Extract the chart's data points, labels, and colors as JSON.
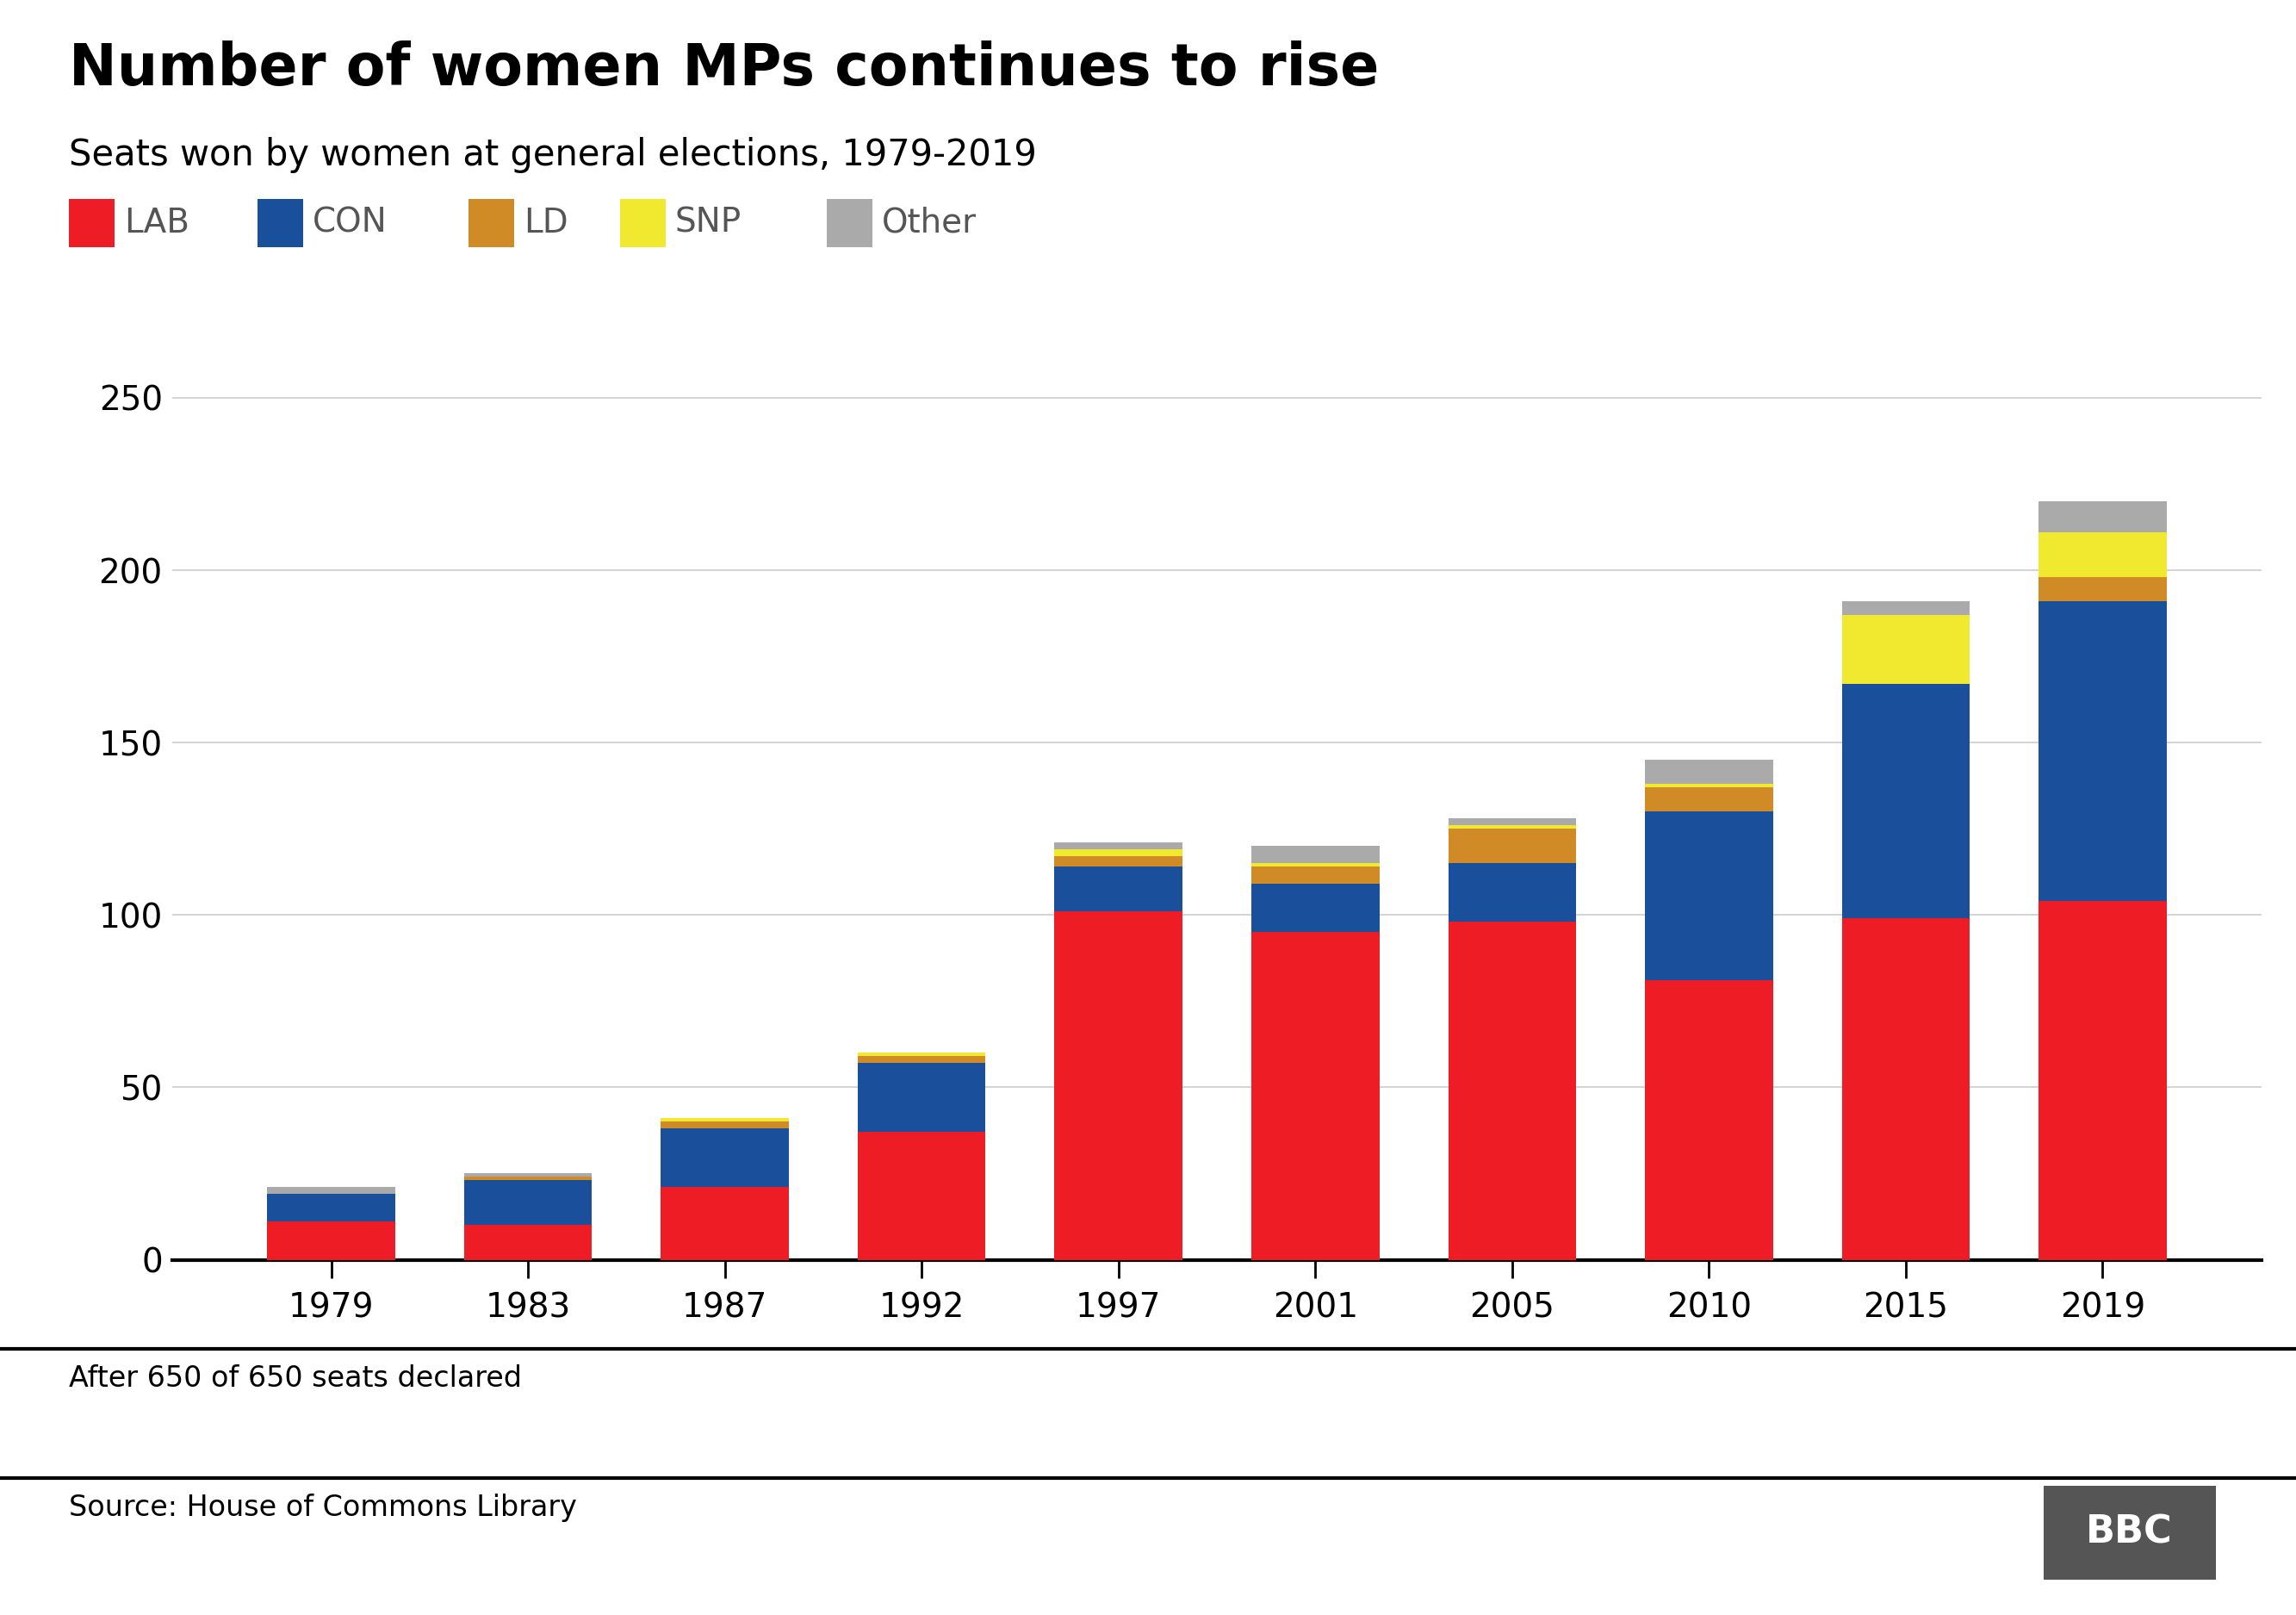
{
  "title": "Number of women MPs continues to rise",
  "subtitle": "Seats won by women at general elections, 1979-2019",
  "footnote": "After 650 of 650 seats declared",
  "source": "Source: House of Commons Library",
  "years": [
    "1979",
    "1983",
    "1987",
    "1992",
    "1997",
    "2001",
    "2005",
    "2010",
    "2015",
    "2019"
  ],
  "parties": [
    "LAB",
    "CON",
    "LD",
    "SNP",
    "Other"
  ],
  "colors": {
    "LAB": "#ee1c25",
    "CON": "#1a4f9c",
    "LD": "#d08b27",
    "SNP": "#f0e92f",
    "Other": "#aaaaaa"
  },
  "data": {
    "LAB": [
      11,
      10,
      21,
      37,
      101,
      95,
      98,
      81,
      99,
      104
    ],
    "CON": [
      8,
      13,
      17,
      20,
      13,
      14,
      17,
      49,
      68,
      87
    ],
    "LD": [
      0,
      1,
      2,
      2,
      3,
      5,
      10,
      7,
      0,
      7
    ],
    "SNP": [
      0,
      0,
      1,
      1,
      2,
      1,
      1,
      1,
      20,
      13
    ],
    "Other": [
      2,
      1,
      0,
      0,
      2,
      5,
      2,
      7,
      4,
      9
    ]
  },
  "ylim": [
    0,
    260
  ],
  "yticks": [
    0,
    50,
    100,
    150,
    200,
    250
  ],
  "background_color": "#ffffff",
  "title_fontsize": 48,
  "subtitle_fontsize": 30,
  "legend_fontsize": 28,
  "tick_fontsize": 28,
  "footnote_fontsize": 24,
  "source_fontsize": 24,
  "bar_width": 0.65,
  "legend_color": "#555555",
  "bbc_bg": "#555555"
}
